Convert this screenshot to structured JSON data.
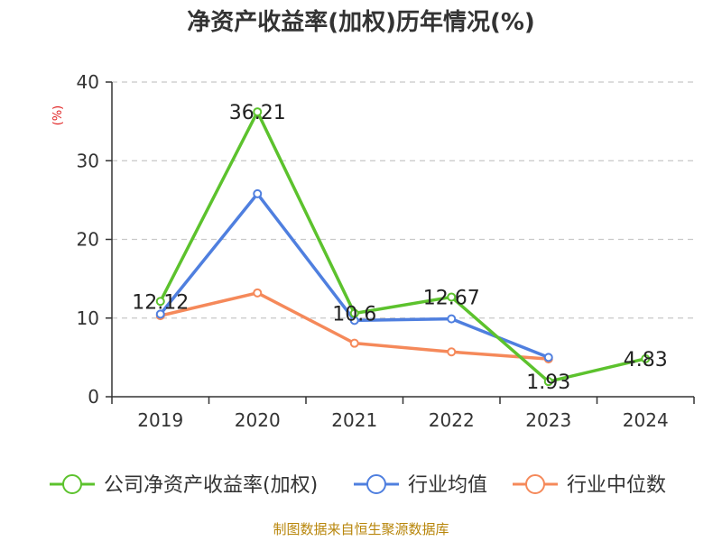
{
  "chart_data": {
    "type": "line",
    "title": "净资产收益率(加权)历年情况(%)",
    "ylabel": "(%)",
    "xlabel": "",
    "categories": [
      "2019",
      "2020",
      "2021",
      "2022",
      "2023",
      "2024"
    ],
    "ylim": [
      0,
      40
    ],
    "yticks": [
      0,
      10,
      20,
      30,
      40
    ],
    "grid": true,
    "legend_position": "bottom",
    "series": [
      {
        "name": "公司净资产收益率(加权)",
        "color": "#5cc22d",
        "values": [
          12.12,
          36.21,
          10.6,
          12.67,
          1.93,
          4.83
        ],
        "labels": [
          "12.12",
          "36.21",
          "10.6",
          "12.67",
          "1.93",
          "4.83"
        ]
      },
      {
        "name": "行业均值",
        "color": "#4f7fdf",
        "values": [
          10.5,
          25.8,
          9.7,
          9.9,
          5.0,
          null
        ]
      },
      {
        "name": "行业中位数",
        "color": "#f5895a",
        "values": [
          10.3,
          13.2,
          6.8,
          5.7,
          4.8,
          null
        ]
      }
    ]
  },
  "source_text": "制图数据来自恒生聚源数据库"
}
